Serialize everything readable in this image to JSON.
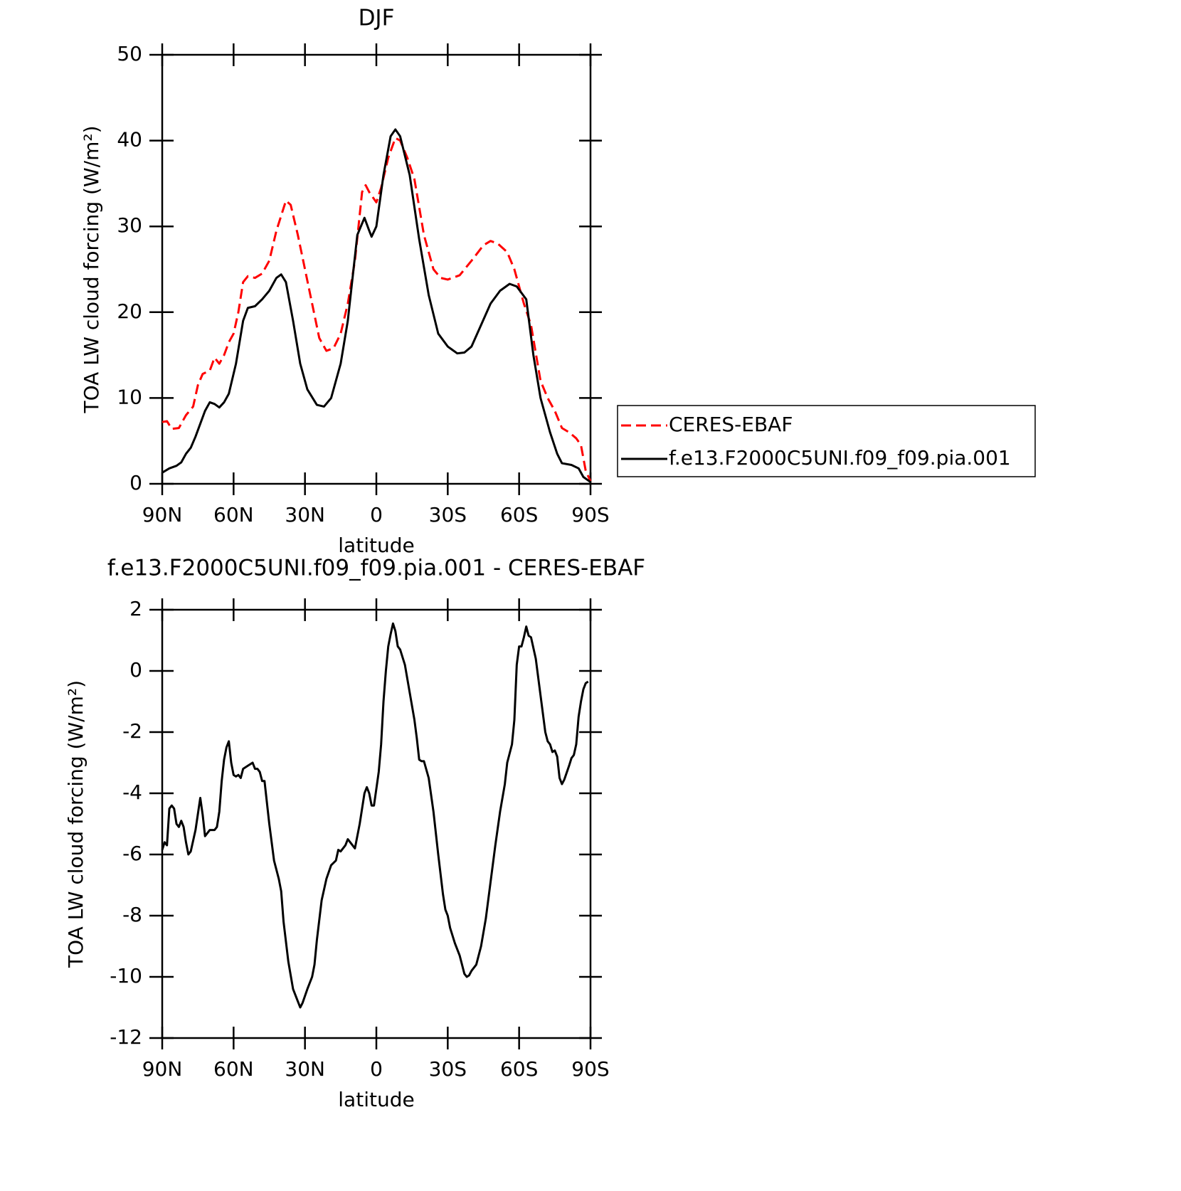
{
  "chart_data": [
    {
      "type": "line",
      "title": "DJF",
      "x_label": "latitude",
      "y_label": "TOA LW cloud forcing (W/m²)",
      "xlim": [
        90,
        -90
      ],
      "ylim": [
        0,
        50
      ],
      "xticks": [
        {
          "value": 90,
          "label": "90N"
        },
        {
          "value": 60,
          "label": "60N"
        },
        {
          "value": 30,
          "label": "30N"
        },
        0,
        {
          "value": -30,
          "label": "30S"
        },
        {
          "value": -60,
          "label": "60S"
        },
        {
          "value": -90,
          "label": "90S"
        }
      ],
      "yticks": [
        0,
        10,
        20,
        30,
        40,
        50
      ],
      "legend": "right",
      "series": [
        {
          "name": "CERES-EBAF",
          "color": "#ff0000",
          "dashed": true,
          "x": [
            90,
            88,
            86,
            83,
            80,
            77,
            75,
            73,
            70,
            68,
            66,
            64,
            62,
            60,
            58,
            56,
            54,
            51,
            48,
            45,
            42,
            38,
            36,
            33,
            30,
            27,
            24,
            21,
            18,
            15,
            12,
            9,
            6,
            4.5,
            3,
            0,
            -2,
            -5,
            -8,
            -10,
            -13,
            -16,
            -20,
            -24,
            -27,
            -30,
            -35,
            -40,
            -45,
            -48,
            -51,
            -55,
            -58,
            -62,
            -65,
            -69,
            -72,
            -75,
            -78,
            -81,
            -84,
            -86,
            -88,
            -90
          ],
          "values": [
            7.2,
            7.3,
            6.4,
            6.5,
            8.0,
            9.0,
            11.5,
            12.8,
            13.2,
            14.7,
            14.0,
            15.0,
            16.5,
            17.5,
            20.0,
            23.5,
            24.2,
            24.0,
            24.5,
            26.0,
            29.5,
            33.0,
            32.5,
            29.0,
            25,
            21,
            17,
            15.5,
            15.8,
            17.5,
            21,
            26,
            34,
            34.8,
            34,
            32.8,
            34.5,
            38,
            40.3,
            40,
            38,
            35.5,
            29,
            25,
            24,
            23.8,
            24.3,
            26,
            27.8,
            28.3,
            28,
            27,
            25,
            21,
            18.5,
            12,
            10,
            8.5,
            6.5,
            6,
            5.3,
            4.5,
            1.5,
            0.3
          ]
        },
        {
          "name": "f.e13.F2000C5UNI.f09_f09.pia.001",
          "color": "#000000",
          "dashed": false,
          "x": [
            90,
            87,
            84,
            82,
            80,
            78,
            76,
            74,
            72,
            70,
            68,
            66,
            64,
            62,
            59,
            56,
            54,
            51,
            48,
            45,
            42,
            40,
            38,
            35,
            32,
            29,
            25,
            22,
            19,
            15,
            12,
            8,
            5,
            3,
            2,
            0,
            -3,
            -6,
            -8,
            -10,
            -14,
            -18,
            -22,
            -26,
            -30,
            -34,
            -37,
            -40,
            -44,
            -48,
            -52,
            -56,
            -59,
            -63,
            -66,
            -69,
            -73,
            -76,
            -78,
            -82,
            -85,
            -87,
            -90
          ],
          "values": [
            1.3,
            1.8,
            2.1,
            2.5,
            3.5,
            4.2,
            5.5,
            7,
            8.5,
            9.5,
            9.3,
            8.9,
            9.5,
            10.5,
            14,
            19,
            20.5,
            20.7,
            21.5,
            22.5,
            24,
            24.4,
            23.5,
            19,
            14,
            11,
            9.2,
            9.0,
            10,
            14,
            19,
            29,
            31,
            29.5,
            28.8,
            30,
            36,
            40.5,
            41.3,
            40.5,
            36,
            28.5,
            22,
            17.5,
            16,
            15.2,
            15.3,
            16,
            18.5,
            21,
            22.5,
            23.3,
            23,
            21.5,
            15,
            10,
            6,
            3.5,
            2.4,
            2.2,
            1.8,
            0.8,
            0.2
          ]
        }
      ]
    },
    {
      "type": "line",
      "title": "f.e13.F2000C5UNI.f09_f09.pia.001 - CERES-EBAF",
      "x_label": "latitude",
      "y_label": "TOA LW cloud forcing (W/m²)",
      "xlim": [
        90,
        -90
      ],
      "ylim": [
        -12,
        2
      ],
      "xticks": [
        {
          "value": 90,
          "label": "90N"
        },
        {
          "value": 60,
          "label": "60N"
        },
        {
          "value": 30,
          "label": "30N"
        },
        0,
        {
          "value": -30,
          "label": "30S"
        },
        {
          "value": -60,
          "label": "60S"
        },
        {
          "value": -90,
          "label": "90S"
        }
      ],
      "yticks": [
        -12,
        -10,
        -8,
        -6,
        -4,
        -2,
        0,
        2
      ],
      "series": [
        {
          "color": "#000000",
          "dashed": false,
          "x": [
            90,
            89,
            88,
            87,
            86,
            85,
            84,
            83,
            82,
            81,
            80,
            79,
            78,
            76,
            74,
            73,
            72,
            70,
            68,
            67,
            66,
            65,
            64,
            63,
            62,
            61,
            60,
            59,
            58,
            57,
            56,
            54,
            52,
            51,
            50,
            49,
            48,
            47,
            45,
            43,
            41,
            40,
            39,
            37,
            35,
            33,
            32,
            31,
            29,
            27,
            26,
            25,
            23,
            21,
            19,
            17,
            16,
            15,
            13,
            12,
            11,
            9,
            7,
            5,
            4,
            3,
            2,
            1,
            -1,
            -2,
            -3,
            -4,
            -5,
            -6,
            -7,
            -8,
            -9,
            -10,
            -12,
            -14,
            -16,
            -17,
            -18,
            -19,
            -20,
            -22,
            -24,
            -26,
            -28,
            -29,
            -30,
            -31,
            -33,
            -35,
            -36,
            -37,
            -38,
            -39,
            -40,
            -42,
            -44,
            -46,
            -48,
            -50,
            -52,
            -54,
            -55,
            -57,
            -58,
            -59,
            -60,
            -61,
            -62,
            -63,
            -64,
            -65,
            -67,
            -69,
            -71,
            -72,
            -73,
            -74,
            -75,
            -76,
            -77,
            -78,
            -79,
            -81,
            -82,
            -83,
            -84,
            -85,
            -86,
            -87,
            -88,
            -89
          ],
          "values": [
            -5.85,
            -5.6,
            -5.7,
            -4.5,
            -4.4,
            -4.5,
            -5.0,
            -5.1,
            -4.9,
            -5.1,
            -5.6,
            -6.0,
            -5.9,
            -5.2,
            -4.15,
            -4.7,
            -5.4,
            -5.2,
            -5.2,
            -5.1,
            -4.6,
            -3.6,
            -2.9,
            -2.5,
            -2.3,
            -3.0,
            -3.4,
            -3.45,
            -3.4,
            -3.5,
            -3.2,
            -3.1,
            -3.0,
            -3.2,
            -3.2,
            -3.3,
            -3.6,
            -3.6,
            -5.0,
            -6.2,
            -6.8,
            -7.2,
            -8.2,
            -9.5,
            -10.4,
            -10.8,
            -11.0,
            -10.85,
            -10.4,
            -10.0,
            -9.6,
            -8.8,
            -7.5,
            -6.8,
            -6.35,
            -6.2,
            -5.85,
            -5.9,
            -5.7,
            -5.5,
            -5.6,
            -5.8,
            -5.0,
            -4.0,
            -3.8,
            -4.0,
            -4.4,
            -4.4,
            -3.3,
            -2.4,
            -1.0,
            0.0,
            0.8,
            1.2,
            1.55,
            1.3,
            0.8,
            0.7,
            0.2,
            -0.7,
            -1.6,
            -2.2,
            -2.9,
            -2.95,
            -2.95,
            -3.5,
            -4.6,
            -6.0,
            -7.3,
            -7.8,
            -8.0,
            -8.4,
            -8.9,
            -9.3,
            -9.6,
            -9.9,
            -10.0,
            -9.95,
            -9.8,
            -9.6,
            -9.0,
            -8.1,
            -6.9,
            -5.7,
            -4.6,
            -3.7,
            -3.0,
            -2.4,
            -1.6,
            0.2,
            0.8,
            0.8,
            1.1,
            1.45,
            1.15,
            1.1,
            0.4,
            -0.8,
            -2.0,
            -2.3,
            -2.4,
            -2.65,
            -2.6,
            -2.8,
            -3.5,
            -3.7,
            -3.55,
            -3.1,
            -2.85,
            -2.75,
            -2.4,
            -1.5,
            -1.0,
            -0.6,
            -0.4,
            -0.35
          ]
        }
      ]
    }
  ]
}
